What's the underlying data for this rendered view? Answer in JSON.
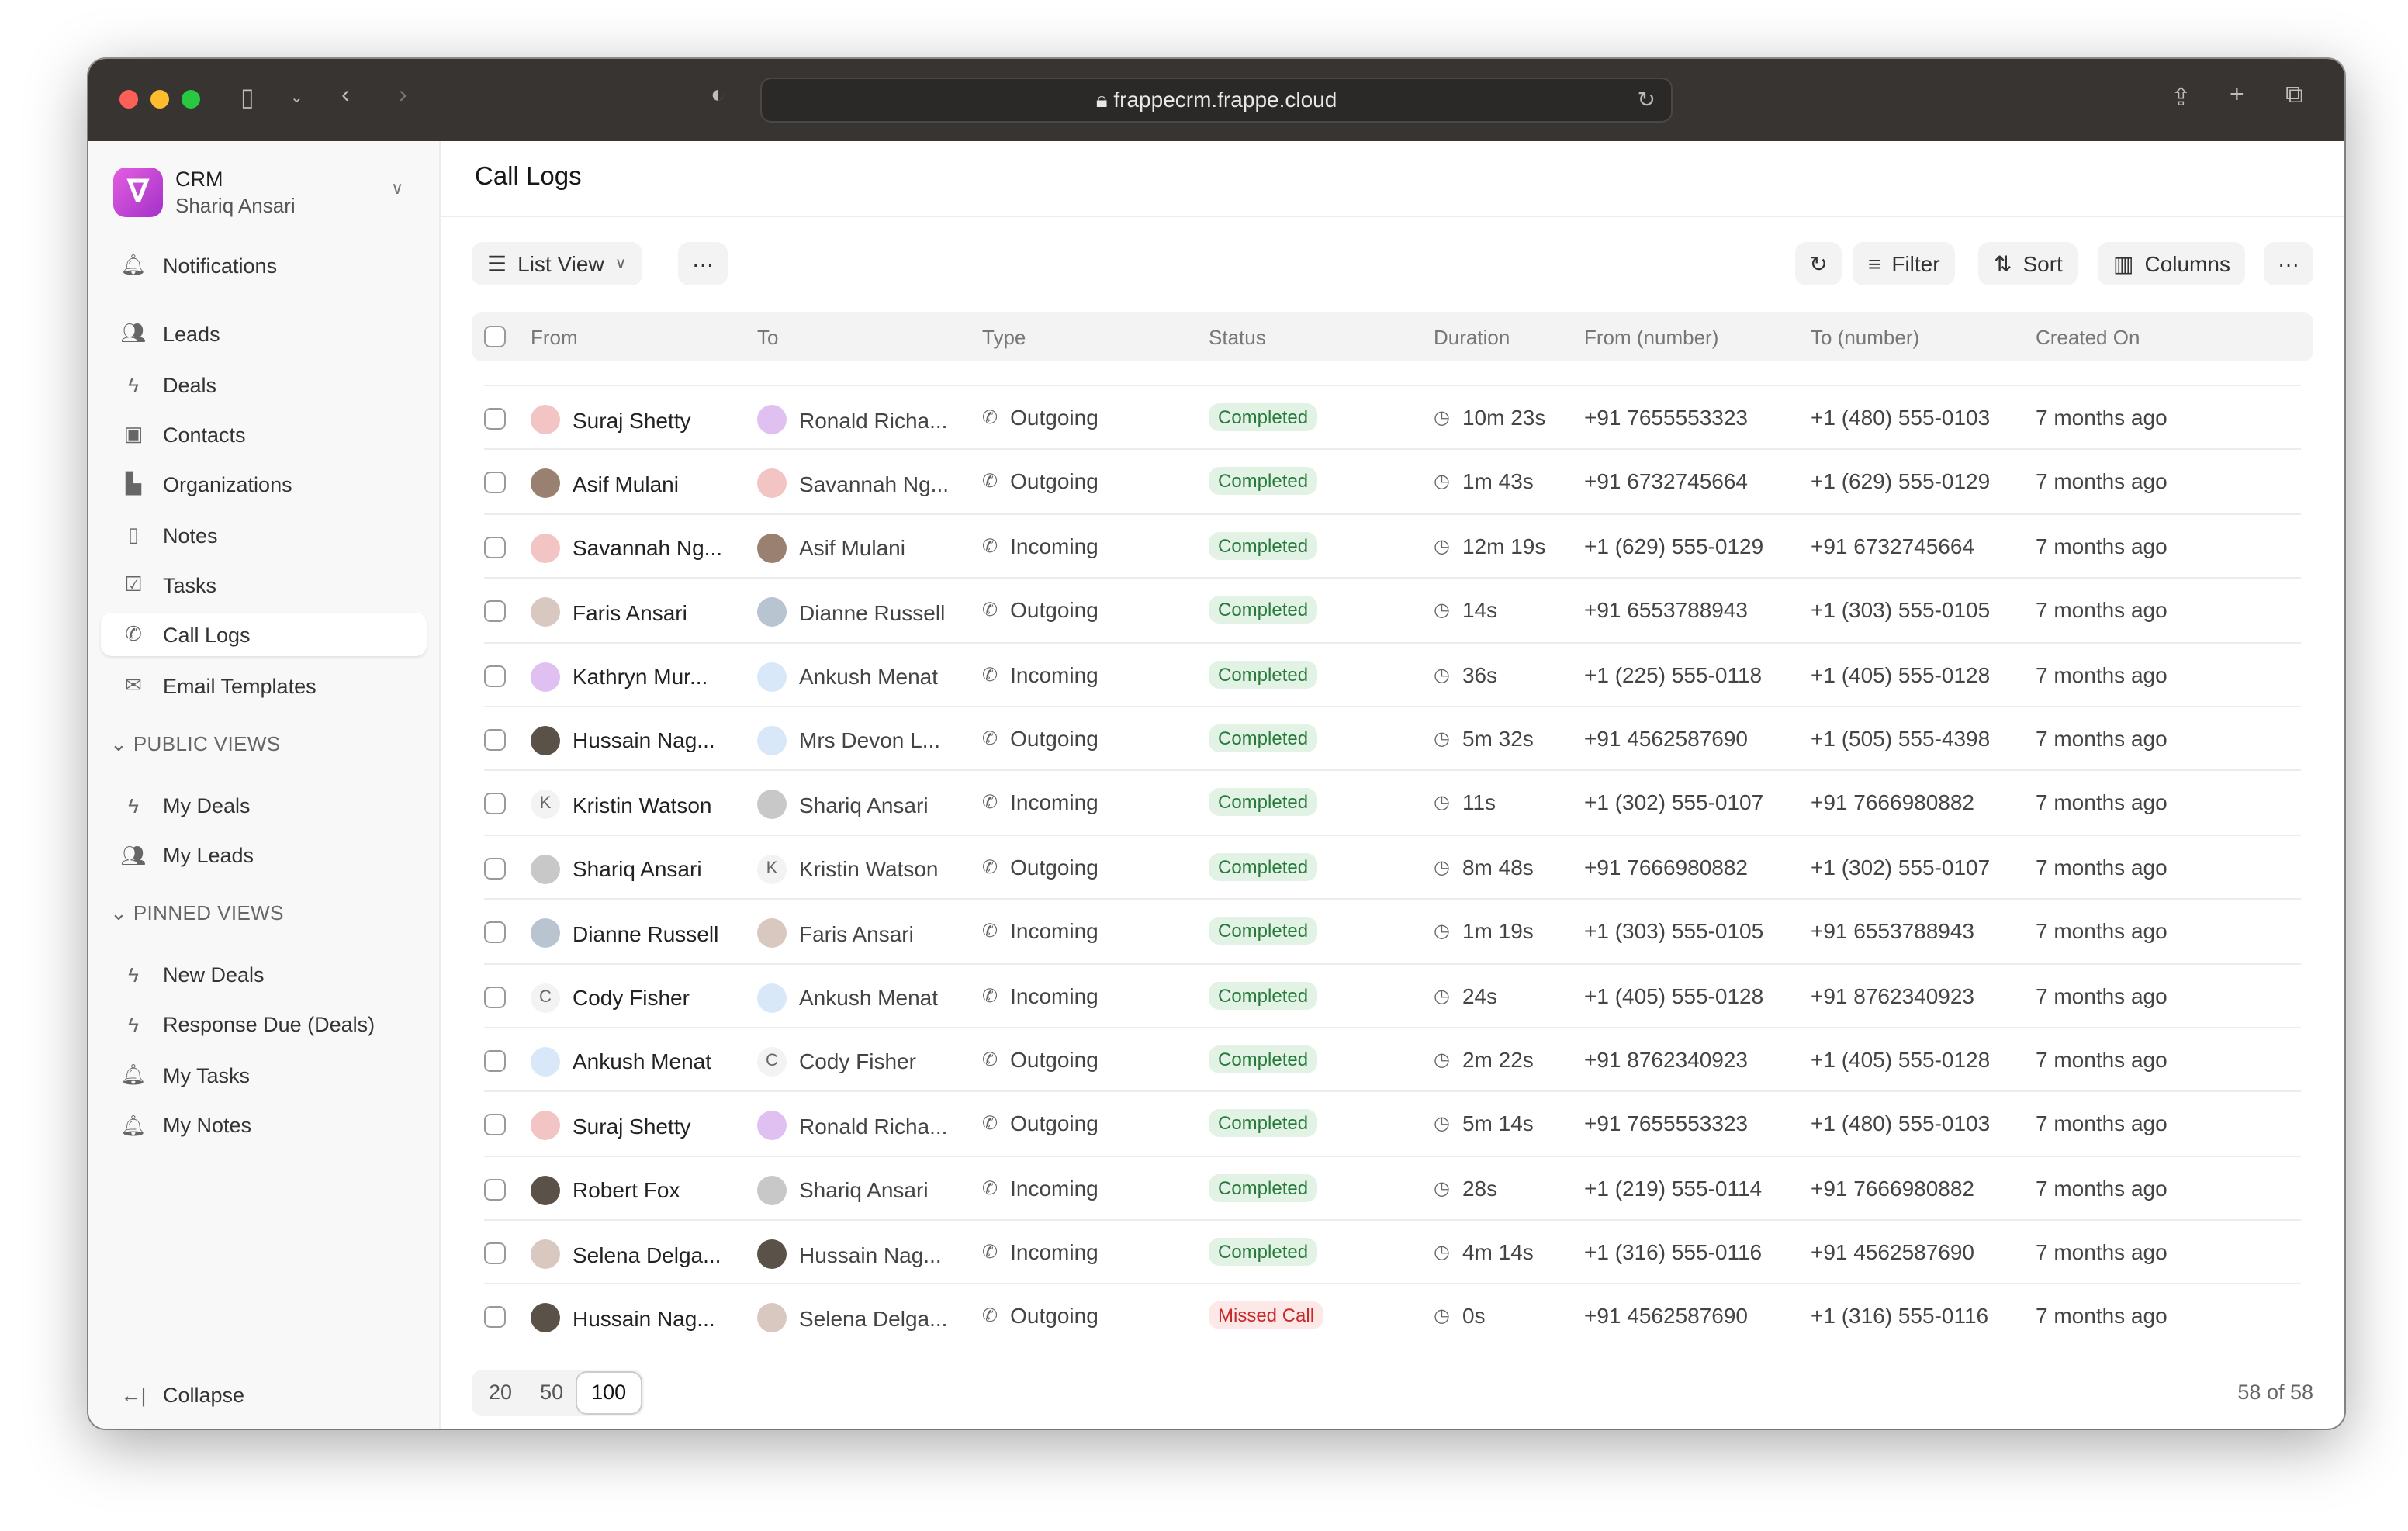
{
  "browser": {
    "url": "frappecrm.frappe.cloud"
  },
  "sidebar": {
    "app": "CRM",
    "user": "Shariq Ansari",
    "items": [
      {
        "label": "Notifications",
        "icon": "bell-icon"
      },
      {
        "label": "Leads",
        "icon": "users-icon"
      },
      {
        "label": "Deals",
        "icon": "lightning-icon"
      },
      {
        "label": "Contacts",
        "icon": "contact-icon"
      },
      {
        "label": "Organizations",
        "icon": "building-icon"
      },
      {
        "label": "Notes",
        "icon": "file-icon"
      },
      {
        "label": "Tasks",
        "icon": "check-square-icon"
      },
      {
        "label": "Call Logs",
        "icon": "phone-icon",
        "active": true
      },
      {
        "label": "Email Templates",
        "icon": "mail-icon"
      }
    ],
    "public_views_label": "PUBLIC VIEWS",
    "public_views": [
      {
        "label": "My Deals",
        "icon": "lightning-icon"
      },
      {
        "label": "My Leads",
        "icon": "users-icon"
      }
    ],
    "pinned_views_label": "PINNED VIEWS",
    "pinned_views": [
      {
        "label": "New Deals",
        "icon": "lightning-icon"
      },
      {
        "label": "Response Due (Deals)",
        "icon": "lightning-icon"
      },
      {
        "label": "My Tasks",
        "icon": "bell-icon"
      },
      {
        "label": "My Notes",
        "icon": "bell-icon"
      }
    ],
    "collapse": "Collapse"
  },
  "page": {
    "title": "Call Logs"
  },
  "toolbar": {
    "view": "List View",
    "filter": "Filter",
    "sort": "Sort",
    "columns": "Columns"
  },
  "table": {
    "columns": [
      "From",
      "To",
      "Type",
      "Status",
      "Duration",
      "From (number)",
      "To (number)",
      "Created On"
    ],
    "rows": [
      [
        "Suraj Shetty",
        "Ronald Richa...",
        "Outgoing",
        "Completed",
        "10m 23s",
        "+91 7655553323",
        "+1 (480) 555-0103",
        "7 months ago"
      ],
      [
        "Asif Mulani",
        "Savannah Ng...",
        "Outgoing",
        "Completed",
        "1m 43s",
        "+91 6732745664",
        "+1 (629) 555-0129",
        "7 months ago"
      ],
      [
        "Savannah Ng...",
        "Asif Mulani",
        "Incoming",
        "Completed",
        "12m 19s",
        "+1 (629) 555-0129",
        "+91 6732745664",
        "7 months ago"
      ],
      [
        "Faris Ansari",
        "Dianne Russell",
        "Outgoing",
        "Completed",
        "14s",
        "+91 6553788943",
        "+1 (303) 555-0105",
        "7 months ago"
      ],
      [
        "Kathryn Mur...",
        "Ankush Menat",
        "Incoming",
        "Completed",
        "36s",
        "+1 (225) 555-0118",
        "+1 (405) 555-0128",
        "7 months ago"
      ],
      [
        "Hussain Nag...",
        "Mrs Devon L...",
        "Outgoing",
        "Completed",
        "5m 32s",
        "+91 4562587690",
        "+1 (505) 555-4398",
        "7 months ago"
      ],
      [
        "Kristin Watson",
        "Shariq Ansari",
        "Incoming",
        "Completed",
        "11s",
        "+1 (302) 555-0107",
        "+91 7666980882",
        "7 months ago"
      ],
      [
        "Shariq Ansari",
        "Kristin Watson",
        "Outgoing",
        "Completed",
        "8m 48s",
        "+91 7666980882",
        "+1 (302) 555-0107",
        "7 months ago"
      ],
      [
        "Dianne Russell",
        "Faris Ansari",
        "Incoming",
        "Completed",
        "1m 19s",
        "+1 (303) 555-0105",
        "+91 6553788943",
        "7 months ago"
      ],
      [
        "Cody Fisher",
        "Ankush Menat",
        "Incoming",
        "Completed",
        "24s",
        "+1 (405) 555-0128",
        "+91 8762340923",
        "7 months ago"
      ],
      [
        "Ankush Menat",
        "Cody Fisher",
        "Outgoing",
        "Completed",
        "2m 22s",
        "+91 8762340923",
        "+1 (405) 555-0128",
        "7 months ago"
      ],
      [
        "Suraj Shetty",
        "Ronald Richa...",
        "Outgoing",
        "Completed",
        "5m 14s",
        "+91 7655553323",
        "+1 (480) 555-0103",
        "7 months ago"
      ],
      [
        "Robert Fox",
        "Shariq Ansari",
        "Incoming",
        "Completed",
        "28s",
        "+1 (219) 555-0114",
        "+91 7666980882",
        "7 months ago"
      ],
      [
        "Selena Delga...",
        "Hussain Nag...",
        "Incoming",
        "Completed",
        "4m 14s",
        "+1 (316) 555-0116",
        "+91 4562587690",
        "7 months ago"
      ],
      [
        "Hussain Nag...",
        "Selena Delga...",
        "Outgoing",
        "Missed Call",
        "0s",
        "+91 4562587690",
        "+1 (316) 555-0116",
        "7 months ago"
      ]
    ]
  },
  "pagination": {
    "sizes": [
      "20",
      "50",
      "100"
    ],
    "selected": "100",
    "count": "58 of 58"
  },
  "colors": {
    "completed_bg": "#e2f2e5",
    "completed_fg": "#287a3c",
    "missed_bg": "#fde8e8",
    "missed_fg": "#c92828",
    "brand": "#c047d8"
  }
}
